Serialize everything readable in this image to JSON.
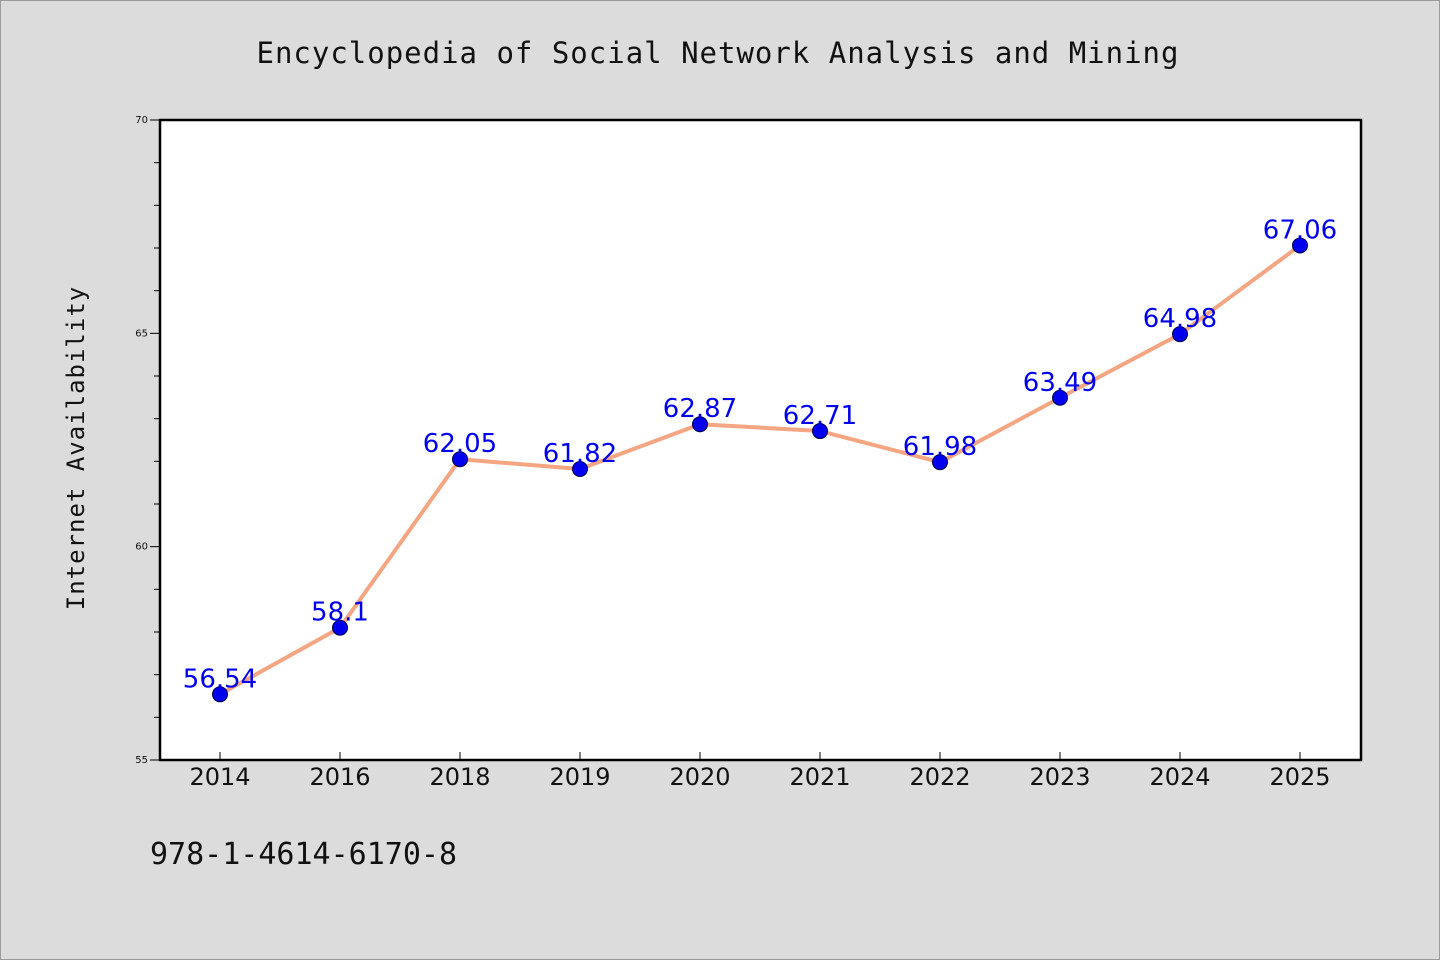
{
  "chart_data": {
    "type": "line",
    "title": "Encyclopedia of Social Network Analysis and Mining",
    "xlabel": "",
    "ylabel": "Internet Availability",
    "categories": [
      "2014",
      "2016",
      "2018",
      "2019",
      "2020",
      "2021",
      "2022",
      "2023",
      "2024",
      "2025"
    ],
    "series": [
      {
        "values": [
          56.54,
          58.1,
          62.05,
          61.82,
          62.87,
          62.71,
          61.98,
          63.49,
          64.98,
          67.06
        ],
        "labels": [
          "56.54",
          "58.1",
          "62.05",
          "61.82",
          "62.87",
          "62.71",
          "61.98",
          "63.49",
          "64.98",
          "67.06"
        ],
        "line_color": "#f4a582",
        "marker_color": "#0000ee"
      }
    ],
    "ylim": [
      55,
      70
    ],
    "yticks": [
      "55",
      "60",
      "65",
      "70"
    ],
    "grid": false,
    "legend": "none"
  },
  "footnote": "978-1-4614-6170-8"
}
